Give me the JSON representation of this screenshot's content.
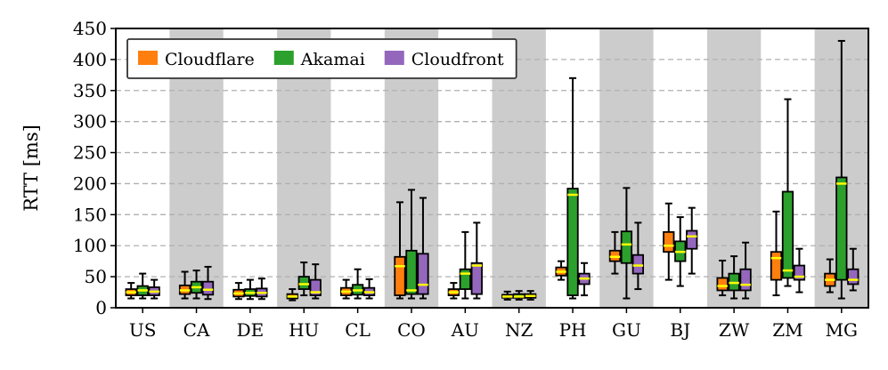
{
  "chart_data": {
    "type": "box",
    "ylabel": "RTT [ms]",
    "xlabel": "",
    "ylim": [
      0,
      450
    ],
    "yticks": [
      0,
      50,
      100,
      150,
      200,
      250,
      300,
      350,
      400,
      450
    ],
    "grid": "horizontal dashed",
    "legend_position": "top-left",
    "shaded_categories": [
      "CA",
      "HU",
      "CO",
      "NZ",
      "GU",
      "ZW",
      "MG"
    ],
    "median_color": "#ffff00",
    "categories": [
      "US",
      "CA",
      "DE",
      "HU",
      "CL",
      "CO",
      "AU",
      "NZ",
      "PH",
      "GU",
      "BJ",
      "ZW",
      "ZM",
      "MG"
    ],
    "series": [
      {
        "name": "Cloudflare",
        "color": "#ff7f0e",
        "boxes": [
          {
            "min": 15,
            "q1": 20,
            "median": 25,
            "q3": 30,
            "max": 40
          },
          {
            "min": 15,
            "q1": 22,
            "median": 28,
            "q3": 36,
            "max": 58
          },
          {
            "min": 14,
            "q1": 18,
            "median": 23,
            "q3": 29,
            "max": 40
          },
          {
            "min": 12,
            "q1": 15,
            "median": 18,
            "q3": 22,
            "max": 30
          },
          {
            "min": 15,
            "q1": 20,
            "median": 26,
            "q3": 32,
            "max": 45
          },
          {
            "min": 15,
            "q1": 20,
            "median": 67,
            "q3": 82,
            "max": 170
          },
          {
            "min": 15,
            "q1": 20,
            "median": 25,
            "q3": 30,
            "max": 40
          },
          {
            "min": 13,
            "q1": 16,
            "median": 18,
            "q3": 21,
            "max": 26
          },
          {
            "min": 45,
            "q1": 52,
            "median": 58,
            "q3": 65,
            "max": 75
          },
          {
            "min": 55,
            "q1": 75,
            "median": 82,
            "q3": 92,
            "max": 122
          },
          {
            "min": 45,
            "q1": 90,
            "median": 100,
            "q3": 122,
            "max": 168
          },
          {
            "min": 20,
            "q1": 28,
            "median": 35,
            "q3": 48,
            "max": 76
          },
          {
            "min": 20,
            "q1": 45,
            "median": 80,
            "q3": 90,
            "max": 155
          },
          {
            "min": 25,
            "q1": 35,
            "median": 45,
            "q3": 55,
            "max": 78
          }
        ]
      },
      {
        "name": "Akamai",
        "color": "#2ca02c",
        "boxes": [
          {
            "min": 15,
            "q1": 20,
            "median": 28,
            "q3": 35,
            "max": 55
          },
          {
            "min": 15,
            "q1": 24,
            "median": 33,
            "q3": 42,
            "max": 60
          },
          {
            "min": 14,
            "q1": 19,
            "median": 24,
            "q3": 30,
            "max": 45
          },
          {
            "min": 20,
            "q1": 30,
            "median": 38,
            "q3": 50,
            "max": 73
          },
          {
            "min": 15,
            "q1": 21,
            "median": 28,
            "q3": 37,
            "max": 62
          },
          {
            "min": 15,
            "q1": 22,
            "median": 28,
            "q3": 92,
            "max": 190
          },
          {
            "min": 15,
            "q1": 30,
            "median": 55,
            "q3": 62,
            "max": 122
          },
          {
            "min": 13,
            "q1": 16,
            "median": 18,
            "q3": 22,
            "max": 27
          },
          {
            "min": 15,
            "q1": 20,
            "median": 182,
            "q3": 192,
            "max": 370
          },
          {
            "min": 15,
            "q1": 72,
            "median": 102,
            "q3": 123,
            "max": 193
          },
          {
            "min": 35,
            "q1": 75,
            "median": 90,
            "q3": 107,
            "max": 146
          },
          {
            "min": 15,
            "q1": 28,
            "median": 40,
            "q3": 55,
            "max": 83
          },
          {
            "min": 35,
            "q1": 48,
            "median": 60,
            "q3": 187,
            "max": 336
          },
          {
            "min": 15,
            "q1": 45,
            "median": 200,
            "q3": 210,
            "max": 430
          }
        ]
      },
      {
        "name": "Cloudfront",
        "color": "#9467bd",
        "boxes": [
          {
            "min": 15,
            "q1": 20,
            "median": 26,
            "q3": 33,
            "max": 45
          },
          {
            "min": 14,
            "q1": 21,
            "median": 29,
            "q3": 42,
            "max": 66
          },
          {
            "min": 14,
            "q1": 18,
            "median": 24,
            "q3": 31,
            "max": 47
          },
          {
            "min": 15,
            "q1": 20,
            "median": 25,
            "q3": 45,
            "max": 70
          },
          {
            "min": 15,
            "q1": 20,
            "median": 25,
            "q3": 32,
            "max": 46
          },
          {
            "min": 15,
            "q1": 22,
            "median": 37,
            "q3": 87,
            "max": 177
          },
          {
            "min": 15,
            "q1": 22,
            "median": 68,
            "q3": 72,
            "max": 137
          },
          {
            "min": 13,
            "q1": 16,
            "median": 19,
            "q3": 22,
            "max": 27
          },
          {
            "min": 20,
            "q1": 38,
            "median": 47,
            "q3": 55,
            "max": 72
          },
          {
            "min": 30,
            "q1": 55,
            "median": 68,
            "q3": 85,
            "max": 137
          },
          {
            "min": 55,
            "q1": 95,
            "median": 115,
            "q3": 124,
            "max": 161
          },
          {
            "min": 15,
            "q1": 28,
            "median": 37,
            "q3": 62,
            "max": 105
          },
          {
            "min": 25,
            "q1": 45,
            "median": 50,
            "q3": 68,
            "max": 95
          },
          {
            "min": 28,
            "q1": 38,
            "median": 45,
            "q3": 62,
            "max": 95
          }
        ]
      }
    ]
  }
}
